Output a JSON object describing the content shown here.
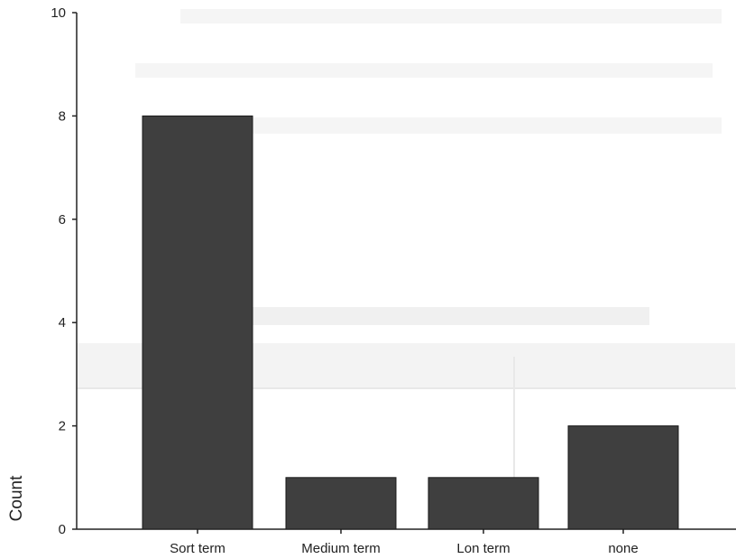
{
  "chart_data": {
    "type": "bar",
    "categories": [
      "Sort term",
      "Medium term",
      "Lon term",
      "none"
    ],
    "values": [
      8,
      1,
      1,
      2
    ],
    "ylabel": "Count",
    "xlabel": "",
    "ylim": [
      0,
      10
    ],
    "yticks": [
      0,
      2,
      4,
      6,
      8,
      10
    ],
    "grid": false,
    "colors": {
      "bar": "#3f3f3f",
      "axis": "#222222"
    }
  }
}
